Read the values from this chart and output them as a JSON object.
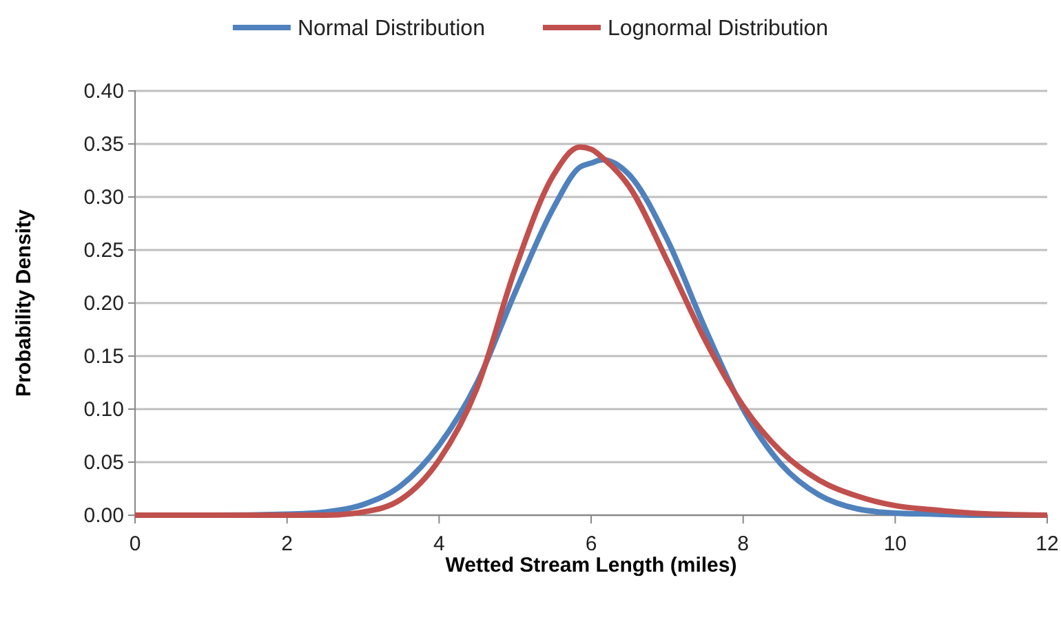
{
  "chart_data": {
    "type": "line",
    "xlabel": "Wetted Stream Length (miles)",
    "ylabel": "Probability Density",
    "x": [
      0,
      1,
      2,
      2.5,
      3,
      3.5,
      4,
      4.5,
      5,
      5.5,
      5.85,
      6,
      6.15,
      6.5,
      7,
      7.5,
      8,
      8.5,
      9,
      9.5,
      10,
      10.5,
      11,
      12
    ],
    "series": [
      {
        "name": "Normal Distribution",
        "color": "#4f81bd",
        "values": [
          0,
          0,
          0.001,
          0.003,
          0.01,
          0.028,
          0.066,
          0.125,
          0.21,
          0.289,
          0.328,
          0.332,
          0.335,
          0.321,
          0.26,
          0.176,
          0.1,
          0.048,
          0.019,
          0.006,
          0.002,
          0.001,
          0,
          0
        ]
      },
      {
        "name": "Lognormal Distribution",
        "color": "#c0504d",
        "values": [
          0,
          0,
          0,
          0,
          0.003,
          0.015,
          0.052,
          0.12,
          0.232,
          0.32,
          0.347,
          0.345,
          0.337,
          0.31,
          0.24,
          0.165,
          0.103,
          0.06,
          0.033,
          0.018,
          0.009,
          0.005,
          0.002,
          0
        ]
      }
    ],
    "xlim": [
      0,
      12
    ],
    "xticks": [
      0,
      2,
      4,
      6,
      8,
      10,
      12
    ],
    "ylim": [
      0,
      0.4
    ],
    "yticks": [
      {
        "value": 0,
        "label": "0.00"
      },
      {
        "value": 0.05,
        "label": "0.05"
      },
      {
        "value": 0.1,
        "label": "0.10"
      },
      {
        "value": 0.15,
        "label": "0.15"
      },
      {
        "value": 0.2,
        "label": "0.20"
      },
      {
        "value": 0.25,
        "label": "0.25"
      },
      {
        "value": 0.3,
        "label": "0.30"
      },
      {
        "value": 0.35,
        "label": "0.35"
      },
      {
        "value": 0.4,
        "label": "0.40"
      }
    ],
    "grid": "y",
    "legend": "top",
    "marker": "none",
    "line_style": "solid"
  }
}
